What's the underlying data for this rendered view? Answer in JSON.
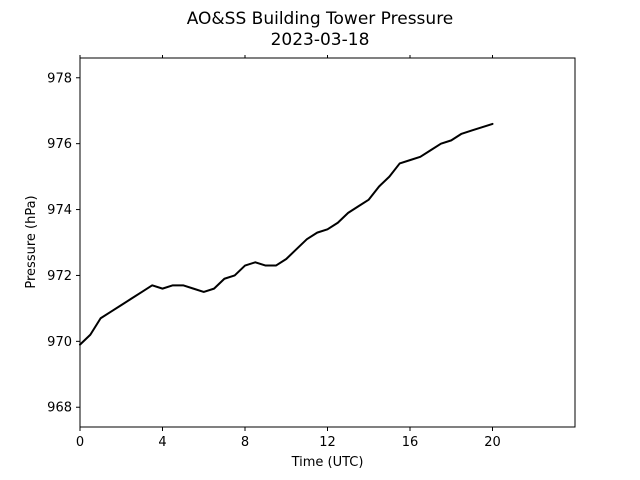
{
  "chart_data": {
    "type": "line",
    "title": "AO&SS Building Tower Pressure",
    "subtitle": "2023-03-18",
    "xlabel": "Time (UTC)",
    "ylabel": "Pressure (hPa)",
    "xlim": [
      0,
      24
    ],
    "ylim": [
      967.4,
      978.6
    ],
    "xticks": [
      0,
      4,
      8,
      12,
      16,
      20
    ],
    "yticks": [
      968,
      970,
      972,
      974,
      976,
      978
    ],
    "grid": false,
    "line_color": "#000000",
    "series": [
      {
        "x": [
          0,
          0.5,
          1,
          1.5,
          2,
          2.5,
          3,
          3.5,
          4,
          4.5,
          5,
          5.5,
          6,
          6.5,
          7,
          7.5,
          8,
          8.5,
          9,
          9.5,
          10,
          10.5,
          11,
          11.5,
          12,
          12.5,
          13,
          13.5,
          14,
          14.5,
          15,
          15.5,
          16,
          16.5,
          17,
          17.5,
          18,
          18.5,
          19,
          19.5,
          20
        ],
        "y": [
          969.9,
          970.2,
          970.7,
          970.9,
          971.1,
          971.3,
          971.5,
          971.7,
          971.6,
          971.7,
          971.7,
          971.6,
          971.5,
          971.6,
          971.9,
          972.0,
          972.3,
          972.4,
          972.3,
          972.3,
          972.5,
          972.8,
          973.1,
          973.3,
          973.4,
          973.6,
          973.9,
          974.1,
          974.3,
          974.7,
          975.0,
          975.4,
          975.5,
          975.6,
          975.8,
          976.0,
          976.1,
          976.3,
          976.4,
          976.5,
          976.6
        ]
      }
    ]
  }
}
